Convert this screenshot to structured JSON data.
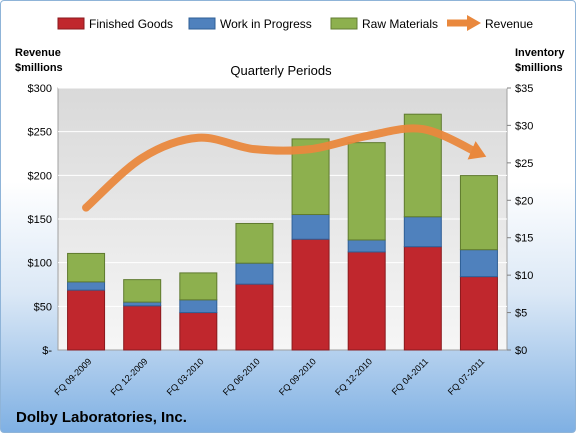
{
  "chart_data": {
    "type": "bar",
    "stacked": true,
    "title": "Quarterly Periods",
    "company": "Dolby Laboratories, Inc.",
    "categories": [
      "FQ 09-2009",
      "FQ 12-2009",
      "FQ 03-2010",
      "FQ 06-2010",
      "FQ 09-2010",
      "FQ 12-2010",
      "FQ 04-2011",
      "FQ 07-2011"
    ],
    "left_axis": {
      "label_line1": "Revenue",
      "label_line2": "$millions",
      "range": [
        0,
        300
      ],
      "ticks": [
        0,
        50,
        100,
        150,
        200,
        250,
        300
      ],
      "tick_labels": [
        "$-",
        "$50",
        "$100",
        "$150",
        "$200",
        "$250",
        "$300"
      ]
    },
    "right_axis": {
      "label_line1": "Inventory",
      "label_line2": "$millions",
      "range": [
        0,
        35
      ],
      "ticks": [
        0,
        5,
        10,
        15,
        20,
        25,
        30,
        35
      ],
      "tick_labels": [
        "$0",
        "$5",
        "$10",
        "$15",
        "$20",
        "$25",
        "$30",
        "$35"
      ]
    },
    "series": [
      {
        "name": "Finished Goods",
        "axis": "right",
        "color": "#c0272d",
        "values": [
          8.0,
          5.9,
          5.0,
          8.8,
          14.8,
          13.1,
          13.8,
          9.8
        ]
      },
      {
        "name": "Work in Progress",
        "axis": "right",
        "color": "#4f81bd",
        "values": [
          1.1,
          0.5,
          1.7,
          2.8,
          3.3,
          1.6,
          4.0,
          3.6
        ]
      },
      {
        "name": "Raw Materials",
        "axis": "right",
        "color": "#8db04e",
        "values": [
          3.8,
          3.0,
          3.6,
          5.3,
          10.1,
          13.0,
          13.7,
          9.9
        ]
      },
      {
        "name": "Revenue",
        "axis": "left",
        "type": "line",
        "color": "#e9883d",
        "values": [
          163,
          220,
          243,
          230,
          230,
          245,
          253,
          225
        ]
      }
    ],
    "grid": true,
    "legend_position": "top"
  }
}
